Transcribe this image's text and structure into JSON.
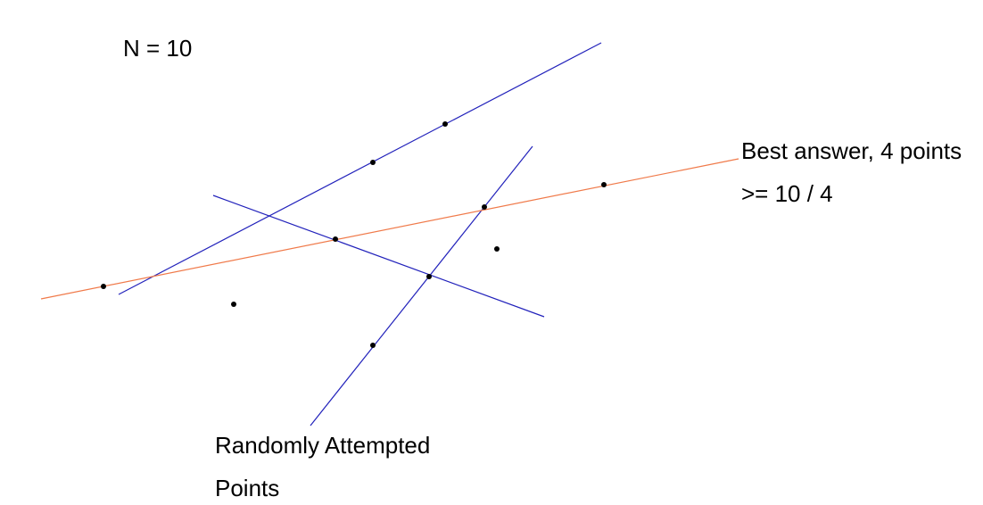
{
  "annotations": {
    "n_label": "N = 10",
    "best_answer_line1": "Best answer, 4 points",
    "best_answer_line2": ">= 10 / 4",
    "random_line1": "Randomly Attempted",
    "random_line2": "Points"
  },
  "colors": {
    "attempted_line": "#2222bb",
    "best_line": "#f07a4a",
    "point": "#000000",
    "text": "#000000"
  }
}
